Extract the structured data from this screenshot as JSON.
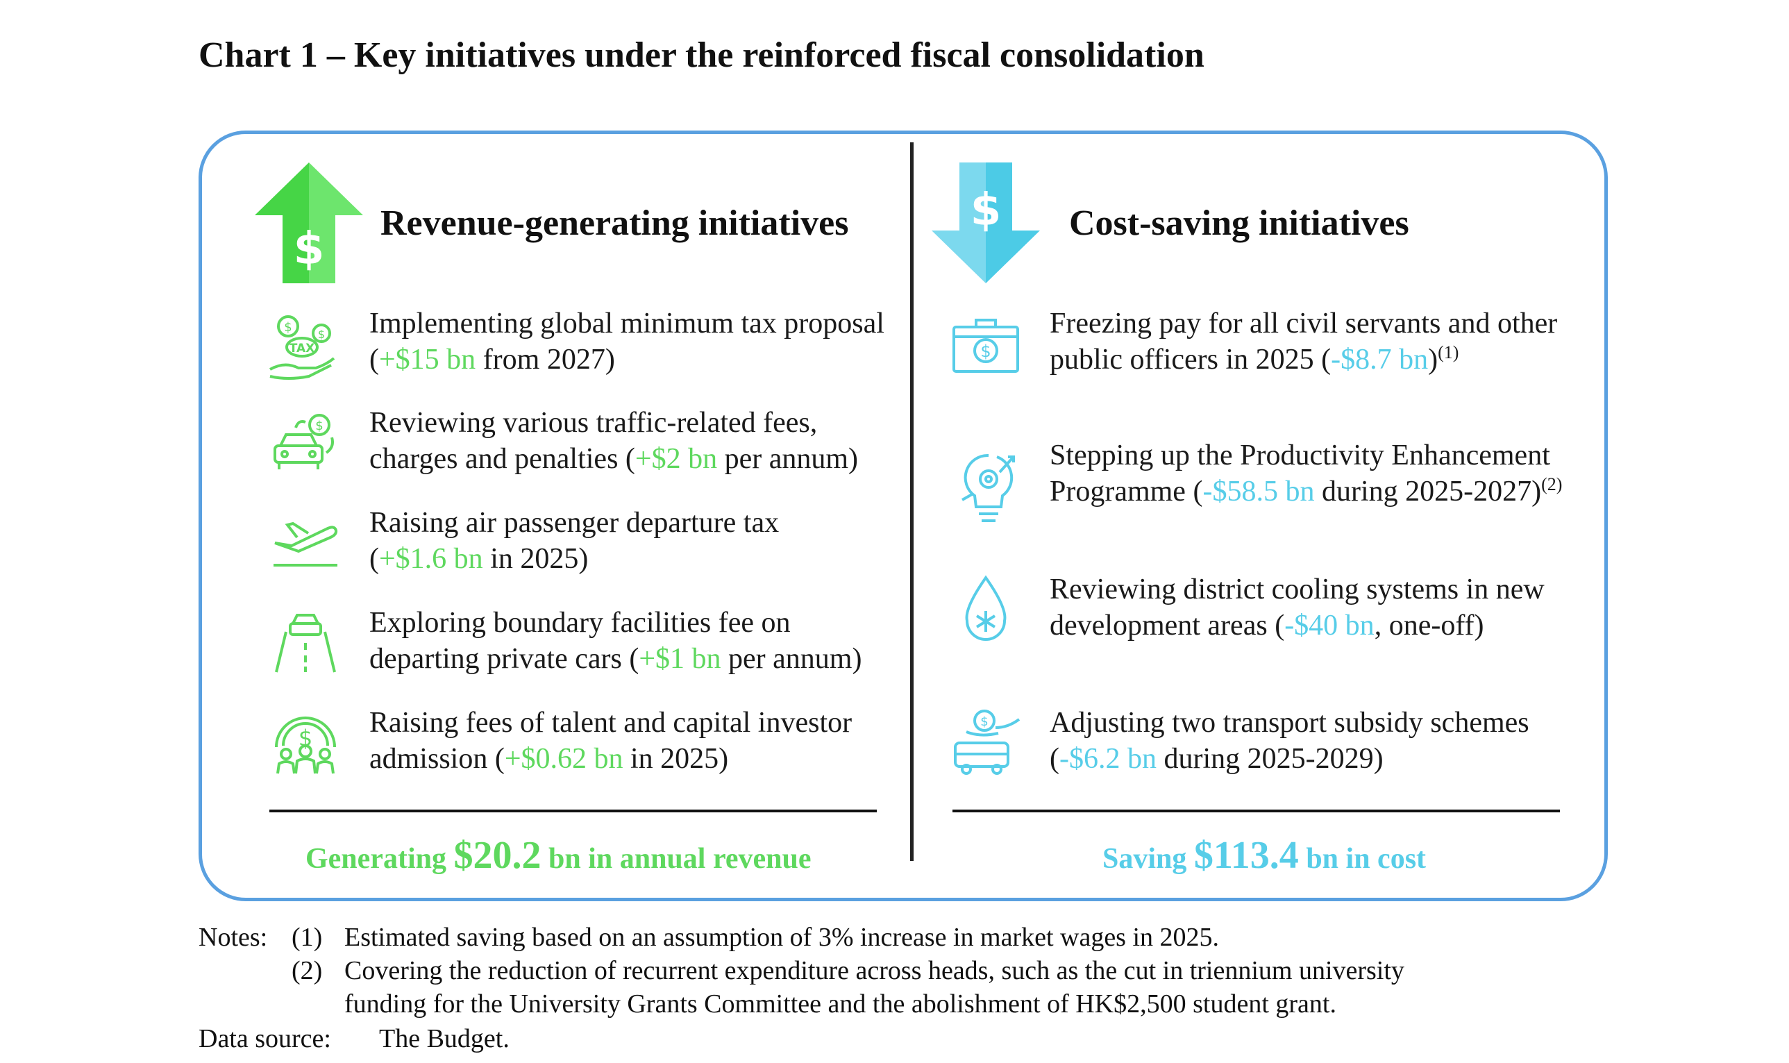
{
  "title": "Chart 1 – Key initiatives under the reinforced fiscal consolidation",
  "colors": {
    "green": "#5ed85e",
    "blue": "#57cde8",
    "panel_border": "#5aa0e0"
  },
  "revenue": {
    "heading": "Revenue-generating initiatives",
    "icon": "dollar-up-arrow-icon",
    "items": [
      {
        "icon": "tax-coins-hand-icon",
        "line1": "Implementing  global minimum  tax proposal",
        "pre": "(",
        "value": "+$15 bn",
        "post": " from 2027)"
      },
      {
        "icon": "car-dollar-icon",
        "line1": "Reviewing various traffic-related fees,",
        "pre": "charges and penalties (",
        "value": "+$2 bn",
        "post": " per annum)"
      },
      {
        "icon": "airplane-takeoff-icon",
        "line1": "Raising air passenger departure tax",
        "pre": "(",
        "value": "+$1.6 bn",
        "post": " in 2025)"
      },
      {
        "icon": "car-road-icon",
        "line1": "Exploring  boundary facilities fee on",
        "pre": "departing private cars (",
        "value": "+$1 bn",
        "post": " per annum)"
      },
      {
        "icon": "people-dollar-icon",
        "line1": "Raising fees of talent and capital investor",
        "pre": "admission (",
        "value": "+$0.62 bn",
        "post": " in 2025)"
      }
    ],
    "total_pre": "Generating ",
    "total_value": "$20.2",
    "total_post": " bn in annual revenue"
  },
  "cost": {
    "heading": "Cost-saving initiatives",
    "icon": "dollar-down-arrow-icon",
    "items": [
      {
        "icon": "briefcase-dollar-icon",
        "line1": "Freezing pay for all civil servants and other",
        "pre": "public officers in 2025 (",
        "value": "-$8.7 bn",
        "post": ")",
        "note": "(1)"
      },
      {
        "icon": "lightbulb-gear-icon",
        "line1": "Stepping up the Productivity Enhancement",
        "pre": "Programme (",
        "value": "-$58.5 bn",
        "post": " during 2025-2027)",
        "note": "(2)"
      },
      {
        "icon": "snowflake-drop-icon",
        "line1": "Reviewing district cooling systems in new",
        "pre": "development areas (",
        "value": "-$40 bn",
        "post": ", one-off)",
        "note": ""
      },
      {
        "icon": "bus-dollar-icon",
        "line1": "Adjusting two transport subsidy schemes",
        "pre": "(",
        "value": "-$6.2 bn",
        "post": " during 2025-2029)",
        "note": ""
      }
    ],
    "total_pre": "Saving ",
    "total_value": "$113.4",
    "total_post": " bn in  cost"
  },
  "notes": {
    "label": "Notes:",
    "n1_num": "(1)",
    "n1_text": "Estimated saving based on an assumption of 3% increase in market wages in 2025.",
    "n2_num": "(2)",
    "n2_line1": "Covering the reduction of recurrent expenditure across heads, such as the cut in triennium university",
    "n2_line2": "funding for the University Grants Committee and the abolishment of HK$2,500 student grant."
  },
  "source": {
    "label": "Data source:",
    "text": "The Budget."
  }
}
